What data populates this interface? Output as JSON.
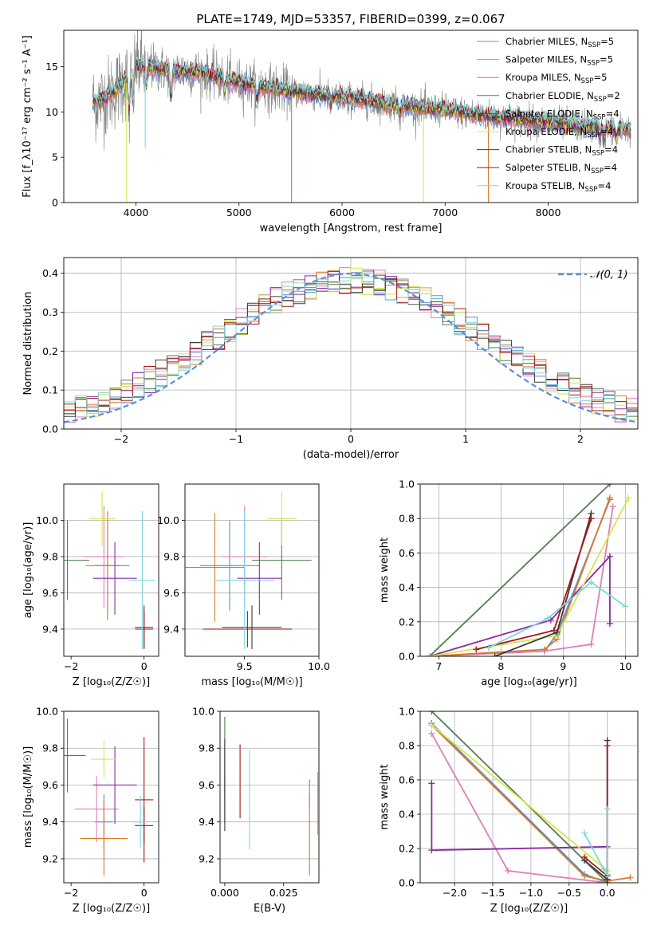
{
  "title": "PLATE=1749, MJD=53357, FIBERID=0399, z=0.067",
  "colors": {
    "Chabrier MILES": "#5b8fd6",
    "Salpeter MILES": "#e07fb8",
    "Kroupa MILES": "#d9792a",
    "Chabrier ELODIE": "#4f7f4f",
    "Salpeter ELODIE": "#8a2aa6",
    "Kroupa ELODIE": "#d4e84a",
    "Chabrier STELIB": "#3a3a3a",
    "Salpeter STELIB": "#a81818",
    "Kroupa STELIB": "#7ed7e0",
    "data": "#808080",
    "normal": "#5b8fd6"
  },
  "chart_data": [
    {
      "id": "spectrum",
      "type": "line",
      "xlabel": "wavelength [Angstrom, rest frame]",
      "ylabel": "Flux [f_λ10⁻¹⁷ erg cm⁻² s⁻¹ A⁻¹]",
      "xlim": [
        3300,
        8870
      ],
      "ylim": [
        0,
        19
      ],
      "xticks": [
        "4000",
        "5000",
        "6000",
        "7000",
        "8000"
      ],
      "yticks": [
        "0",
        "5",
        "10",
        "15"
      ],
      "grid": false,
      "legend_position": "top-right",
      "legend": [
        {
          "name": "Chabrier MILES, N",
          "sub": "SSP",
          "n": "=5"
        },
        {
          "name": "Salpeter MILES, N",
          "sub": "SSP",
          "n": "=5"
        },
        {
          "name": "Kroupa MILES, N",
          "sub": "SSP",
          "n": "=5"
        },
        {
          "name": "Chabrier ELODIE, N",
          "sub": "SSP",
          "n": "=2"
        },
        {
          "name": "Salpeter ELODIE, N",
          "sub": "SSP",
          "n": "=4"
        },
        {
          "name": "Kroupa ELODIE, N",
          "sub": "SSP",
          "n": "=4"
        },
        {
          "name": "Chabrier STELIB, N",
          "sub": "SSP",
          "n": "=4"
        },
        {
          "name": "Salpeter STELIB, N",
          "sub": "SSP",
          "n": "=4"
        },
        {
          "name": "Kroupa STELIB, N",
          "sub": "SSP",
          "n": "=4"
        }
      ],
      "continuum": [
        [
          3580,
          11.0
        ],
        [
          3700,
          11.5
        ],
        [
          3900,
          13.5
        ],
        [
          4000,
          15.2
        ],
        [
          4300,
          14.6
        ],
        [
          4600,
          14.4
        ],
        [
          5000,
          13.2
        ],
        [
          5500,
          12.3
        ],
        [
          6000,
          11.6
        ],
        [
          6500,
          10.8
        ],
        [
          7000,
          10.2
        ],
        [
          7500,
          9.4
        ],
        [
          8000,
          8.8
        ],
        [
          8500,
          8.3
        ],
        [
          8800,
          8.0
        ]
      ],
      "absorption": [
        [
          3934,
          4.5
        ],
        [
          3969,
          4.0
        ],
        [
          4102,
          2.5
        ],
        [
          4340,
          3.5
        ],
        [
          4861,
          1.5
        ],
        [
          5175,
          2.0
        ],
        [
          5890,
          1.2
        ],
        [
          6563,
          1.0
        ],
        [
          8498,
          1.2
        ],
        [
          8542,
          1.5
        ],
        [
          8662,
          1.3
        ]
      ],
      "model_spikes": [
        {
          "model": "Kroupa ELODIE",
          "x": 3910,
          "y": 0
        },
        {
          "model": "Kroupa MILES",
          "x": 5510,
          "y": 0
        },
        {
          "model": "Kroupa ELODIE",
          "x": 6790,
          "y": 0
        },
        {
          "model": "Kroupa MILES",
          "x": 7420,
          "y": 0
        },
        {
          "model": "Kroupa STELIB",
          "x": 4090,
          "y": 6
        }
      ]
    },
    {
      "id": "residuals",
      "type": "histogram",
      "xlabel": "(data-model)/error",
      "ylabel": "Normed distribution",
      "xlim": [
        -2.5,
        2.5
      ],
      "ylim": [
        0,
        0.44
      ],
      "xticks": [
        "−2",
        "−1",
        "0",
        "1",
        "2"
      ],
      "yticks": [
        "0.0",
        "0.1",
        "0.2",
        "0.3",
        "0.4"
      ],
      "grid": true,
      "legend_position": "top-right",
      "legend": [
        "𝒩(0, 1)"
      ],
      "bin_width": 0.1
    },
    {
      "id": "age-vs-Z",
      "type": "errorbar",
      "xlabel": "Z [log₁₀(Z/Z☉)]",
      "ylabel": "age  [log₁₀(age/yr)]",
      "xlim": [
        -2.2,
        0.4
      ],
      "ylim": [
        9.25,
        10.2
      ],
      "xticks": [
        "−2",
        "0"
      ],
      "yticks": [
        "9.4",
        "9.6",
        "9.8",
        "10.0"
      ],
      "points": [
        {
          "model": "Chabrier MILES",
          "x": -1.0,
          "xerr": 0.35,
          "y": 9.75,
          "yerr": 0.25
        },
        {
          "model": "Salpeter MILES",
          "x": -1.1,
          "xerr": 0.55,
          "y": 9.8,
          "yerr": 0.28
        },
        {
          "model": "Kroupa MILES",
          "x": -1.0,
          "xerr": 0.6,
          "y": 9.75,
          "yerr": 0.3
        },
        {
          "model": "Chabrier ELODIE",
          "x": -2.1,
          "xerr": 0.6,
          "y": 9.78,
          "yerr": 0.22
        },
        {
          "model": "Salpeter ELODIE",
          "x": -0.8,
          "xerr": 0.6,
          "y": 9.68,
          "yerr": 0.2
        },
        {
          "model": "Kroupa ELODIE",
          "x": -1.15,
          "xerr": 0.35,
          "y": 10.01,
          "yerr": 0.15
        },
        {
          "model": "Chabrier STELIB",
          "x": 0.0,
          "xerr": 0.25,
          "y": 9.41,
          "yerr": 0.12
        },
        {
          "model": "Salpeter STELIB",
          "x": 0.0,
          "xerr": 0.25,
          "y": 9.4,
          "yerr": 0.1
        },
        {
          "model": "Kroupa STELIB",
          "x": -0.05,
          "xerr": 0.35,
          "y": 9.67,
          "yerr": 0.38
        }
      ]
    },
    {
      "id": "age-vs-mass",
      "type": "errorbar",
      "xlabel": "mass [log₁₀(M/M☉)]",
      "ylabel": "",
      "xlim": [
        9.1,
        10.0
      ],
      "ylim": [
        9.25,
        10.2
      ],
      "xticks": [
        "9.5",
        "10.0"
      ],
      "yticks": [
        "9.4",
        "9.6",
        "9.8",
        "10.0"
      ],
      "points": [
        {
          "model": "Chabrier MILES",
          "x": 9.4,
          "xerr": 0.2,
          "y": 9.75,
          "yerr": 0.25
        },
        {
          "model": "Salpeter MILES",
          "x": 9.5,
          "xerr": 0.15,
          "y": 9.8,
          "yerr": 0.28
        },
        {
          "model": "Kroupa MILES",
          "x": 9.3,
          "xerr": 0.2,
          "y": 9.74,
          "yerr": 0.3
        },
        {
          "model": "Chabrier ELODIE",
          "x": 9.75,
          "xerr": 0.2,
          "y": 9.78,
          "yerr": 0.22
        },
        {
          "model": "Salpeter ELODIE",
          "x": 9.6,
          "xerr": 0.15,
          "y": 9.68,
          "yerr": 0.2
        },
        {
          "model": "Kroupa ELODIE",
          "x": 9.75,
          "xerr": 0.1,
          "y": 10.01,
          "yerr": 0.15
        },
        {
          "model": "Chabrier STELIB",
          "x": 9.55,
          "xerr": 0.2,
          "y": 9.41,
          "yerr": 0.12
        },
        {
          "model": "Salpeter STELIB",
          "x": 9.52,
          "xerr": 0.3,
          "y": 9.4,
          "yerr": 0.1
        },
        {
          "model": "Kroupa STELIB",
          "x": 9.5,
          "xerr": 0.2,
          "y": 9.67,
          "yerr": 0.38
        }
      ]
    },
    {
      "id": "massweight-vs-age",
      "type": "line",
      "xlabel": "age  [log₁₀(age/yr)]",
      "ylabel": "mass weight",
      "xlim": [
        6.7,
        10.2
      ],
      "ylim": [
        0,
        1
      ],
      "xticks": [
        "7",
        "8",
        "9",
        "10"
      ],
      "yticks": [
        "0.0",
        "0.2",
        "0.4",
        "0.6",
        "0.8",
        "1.0"
      ],
      "grid": true,
      "series": [
        {
          "model": "Chabrier MILES",
          "x": [
            6.85,
            8.7,
            8.9,
            9.75
          ],
          "y": [
            0.0,
            0.03,
            0.13,
            0.91
          ]
        },
        {
          "model": "Salpeter MILES",
          "x": [
            6.85,
            8.7,
            9.45,
            9.8
          ],
          "y": [
            0.0,
            0.03,
            0.07,
            0.87
          ]
        },
        {
          "model": "Kroupa MILES",
          "x": [
            6.85,
            8.7,
            8.9,
            9.75
          ],
          "y": [
            0.0,
            0.04,
            0.1,
            0.92
          ]
        },
        {
          "model": "Chabrier ELODIE",
          "x": [
            6.85,
            9.75
          ],
          "y": [
            0.0,
            1.0
          ]
        },
        {
          "model": "Salpeter ELODIE",
          "x": [
            6.85,
            8.8,
            9.75,
            9.75
          ],
          "y": [
            0.0,
            0.21,
            0.58,
            0.19
          ]
        },
        {
          "model": "Kroupa ELODIE",
          "x": [
            6.85,
            8.9,
            10.05
          ],
          "y": [
            0.0,
            0.12,
            0.92
          ]
        },
        {
          "model": "Chabrier STELIB",
          "x": [
            7.9,
            8.9,
            9.45
          ],
          "y": [
            0.0,
            0.14,
            0.83
          ]
        },
        {
          "model": "Salpeter STELIB",
          "x": [
            7.6,
            8.85,
            9.45
          ],
          "y": [
            0.04,
            0.15,
            0.8
          ]
        },
        {
          "model": "Kroupa STELIB",
          "x": [
            7.8,
            8.75,
            9.45,
            10.0
          ],
          "y": [
            0.05,
            0.22,
            0.43,
            0.29
          ]
        }
      ]
    },
    {
      "id": "mass-vs-Z",
      "type": "errorbar",
      "xlabel": "Z [log₁₀(Z/Z☉)]",
      "ylabel": "mass [log₁₀(M/M☉)]",
      "xlim": [
        -2.2,
        0.4
      ],
      "ylim": [
        9.07,
        10.0
      ],
      "xticks": [
        "−2",
        "0"
      ],
      "yticks": [
        "9.2",
        "9.4",
        "9.6",
        "9.8",
        "10.0"
      ],
      "points": [
        {
          "model": "Chabrier MILES",
          "x": -1.1,
          "xerr": 0.25,
          "y": 9.4,
          "yerr": 0.15
        },
        {
          "model": "Salpeter MILES",
          "x": -1.3,
          "xerr": 0.6,
          "y": 9.47,
          "yerr": 0.18
        },
        {
          "model": "Kroupa MILES",
          "x": -1.1,
          "xerr": 0.65,
          "y": 9.31,
          "yerr": 0.2
        },
        {
          "model": "Chabrier ELODIE",
          "x": -2.1,
          "xerr": 0.5,
          "y": 9.76,
          "yerr": 0.2
        },
        {
          "model": "Salpeter ELODIE",
          "x": -0.8,
          "xerr": 0.6,
          "y": 9.6,
          "yerr": 0.21
        },
        {
          "model": "Kroupa ELODIE",
          "x": -1.1,
          "xerr": 0.35,
          "y": 9.74,
          "yerr": 0.1
        },
        {
          "model": "Chabrier STELIB",
          "x": 0.0,
          "xerr": 0.25,
          "y": 9.38,
          "yerr": 0.1
        },
        {
          "model": "Salpeter STELIB",
          "x": 0.0,
          "xerr": 0.25,
          "y": 9.52,
          "yerr": 0.34
        },
        {
          "model": "Kroupa STELIB",
          "x": -0.1,
          "xerr": 0.2,
          "y": 9.4,
          "yerr": 0.14
        }
      ]
    },
    {
      "id": "mass-vs-EBV",
      "type": "errorbar",
      "xlabel": "E(B-V)",
      "ylabel": "",
      "xlim": [
        -0.002,
        0.04
      ],
      "ylim": [
        9.07,
        10.0
      ],
      "xticks": [
        "0.000",
        "0.025"
      ],
      "yticks": [
        "9.2",
        "9.4",
        "9.6",
        "9.8",
        "10.0"
      ],
      "points": [
        {
          "model": "Chabrier MILES",
          "x": 0.036,
          "y": 9.55,
          "yerr": 0.08
        },
        {
          "model": "Salpeter MILES",
          "x": 0.0395,
          "y": 9.5,
          "yerr": 0.17
        },
        {
          "model": "Kroupa MILES",
          "x": 0.036,
          "y": 9.33,
          "yerr": 0.22
        },
        {
          "model": "Chabrier ELODIE",
          "x": 0.0,
          "y": 9.75,
          "yerr": 0.22
        },
        {
          "model": "Salpeter ELODIE",
          "x": 0.0,
          "y": 9.6,
          "yerr": 0.21
        },
        {
          "model": "Kroupa ELODIE",
          "x": 0.0,
          "y": 9.74,
          "yerr": 0.1
        },
        {
          "model": "Chabrier STELIB",
          "x": 0.0,
          "y": 9.6,
          "yerr": 0.25
        },
        {
          "model": "Salpeter STELIB",
          "x": 0.0065,
          "y": 9.62,
          "yerr": 0.2
        },
        {
          "model": "Kroupa STELIB",
          "x": 0.0105,
          "y": 9.52,
          "yerr": 0.27
        }
      ]
    },
    {
      "id": "massweight-vs-Z",
      "type": "line",
      "xlabel": "Z [log₁₀(Z/Z☉)]",
      "ylabel": "mass weight",
      "xlim": [
        -2.45,
        0.4
      ],
      "ylim": [
        0,
        1
      ],
      "xticks": [
        "−2.0",
        "−1.5",
        "−1.0",
        "−0.5",
        "0.0"
      ],
      "yticks": [
        "0.0",
        "0.2",
        "0.4",
        "0.6",
        "0.8",
        "1.0"
      ],
      "grid": true,
      "series": [
        {
          "model": "Chabrier MILES",
          "x": [
            -2.3,
            -0.3,
            0.0
          ],
          "y": [
            0.93,
            0.05,
            0.0
          ]
        },
        {
          "model": "Salpeter MILES",
          "x": [
            -2.3,
            -1.3,
            0.0
          ],
          "y": [
            0.87,
            0.07,
            0.0
          ]
        },
        {
          "model": "Kroupa MILES",
          "x": [
            -2.3,
            -0.3,
            0.0,
            0.3
          ],
          "y": [
            0.92,
            0.04,
            0.01,
            0.03
          ]
        },
        {
          "model": "Chabrier ELODIE",
          "x": [
            -2.3,
            0.0
          ],
          "y": [
            1.0,
            0.0
          ]
        },
        {
          "model": "Salpeter ELODIE",
          "x": [
            -2.3,
            -2.3,
            0.0
          ],
          "y": [
            0.58,
            0.19,
            0.21
          ]
        },
        {
          "model": "Kroupa ELODIE",
          "x": [
            -2.3,
            0.0
          ],
          "y": [
            0.92,
            0.07
          ]
        },
        {
          "model": "Chabrier STELIB",
          "x": [
            -0.3,
            0.0,
            0.0
          ],
          "y": [
            0.13,
            0.02,
            0.83
          ]
        },
        {
          "model": "Salpeter STELIB",
          "x": [
            -0.3,
            0.0,
            0.0
          ],
          "y": [
            0.15,
            0.04,
            0.8
          ]
        },
        {
          "model": "Kroupa STELIB",
          "x": [
            -0.3,
            -0.05,
            0.0,
            0.0
          ],
          "y": [
            0.29,
            0.08,
            0.05,
            0.43
          ]
        }
      ]
    }
  ]
}
